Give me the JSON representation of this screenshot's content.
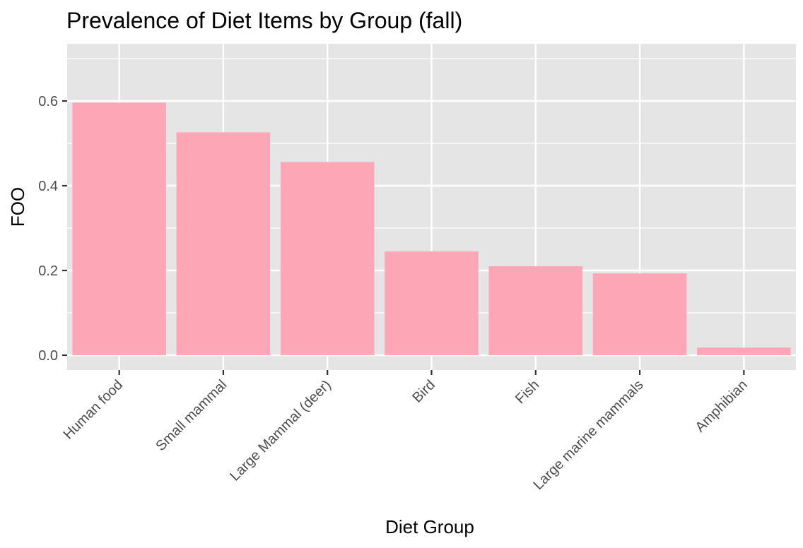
{
  "chart_data": {
    "type": "bar",
    "title": "Prevalence of Diet Items by Group (fall)",
    "xlabel": "Diet Group",
    "ylabel": "FOO",
    "categories": [
      "Human food",
      "Small mammal",
      "Large Mammal (deer)",
      "Bird",
      "Fish",
      "Large marine mammals",
      "Amphibian"
    ],
    "values": [
      0.596,
      0.526,
      0.456,
      0.245,
      0.21,
      0.193,
      0.018
    ],
    "ylim": [
      -0.035,
      0.735
    ],
    "yticks": [
      0.0,
      0.2,
      0.4,
      0.6
    ],
    "ytick_labels": [
      "0.0",
      "0.2",
      "0.4",
      "0.6"
    ],
    "grid": true,
    "legend": "none",
    "colors": {
      "bar": "#fca6b6",
      "panel": "#e5e5e5",
      "grid": "#ffffff",
      "tick_text": "#4d4d4d"
    }
  }
}
